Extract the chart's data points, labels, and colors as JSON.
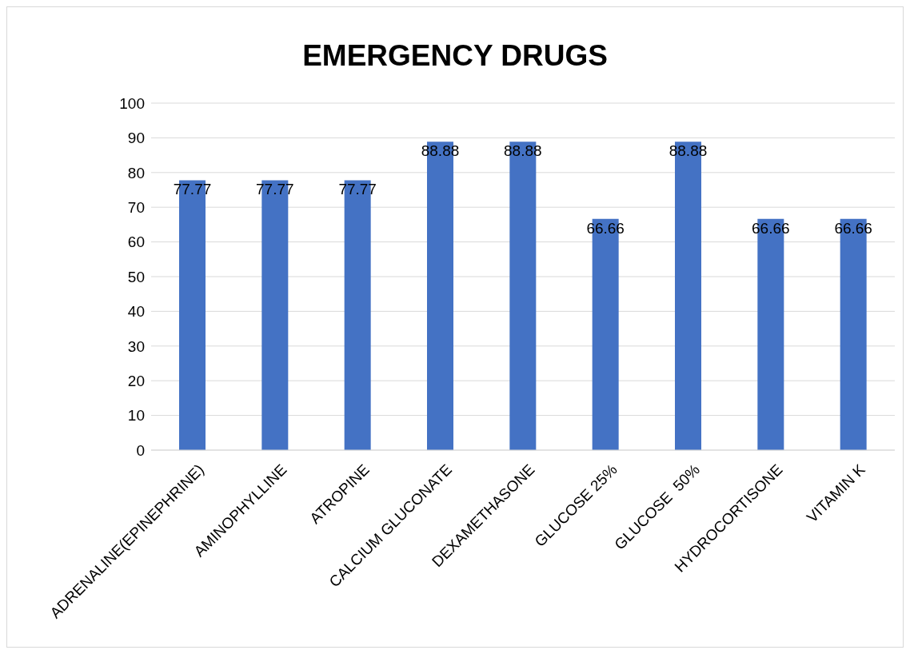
{
  "chart_data": {
    "type": "bar",
    "title": "EMERGENCY DRUGS",
    "categories": [
      "ADRENALINE(EPINEPHRINE)",
      "AMINOPHYLLINE",
      "ATROPINE",
      "CALCIUM GLUCONATE",
      "DEXAMETHASONE",
      "GLUCOSE 25%",
      "GLUCOSE  50%",
      "HYDROCORTISONE",
      "VITAMIN K"
    ],
    "values": [
      77.77,
      77.77,
      77.77,
      88.88,
      88.88,
      66.66,
      88.88,
      66.66,
      66.66
    ],
    "color": "#4472c4",
    "ylim": [
      0,
      100
    ],
    "yticks": [
      0,
      10,
      20,
      30,
      40,
      50,
      60,
      70,
      80,
      90,
      100
    ],
    "grid": "y",
    "data_labels": true
  }
}
